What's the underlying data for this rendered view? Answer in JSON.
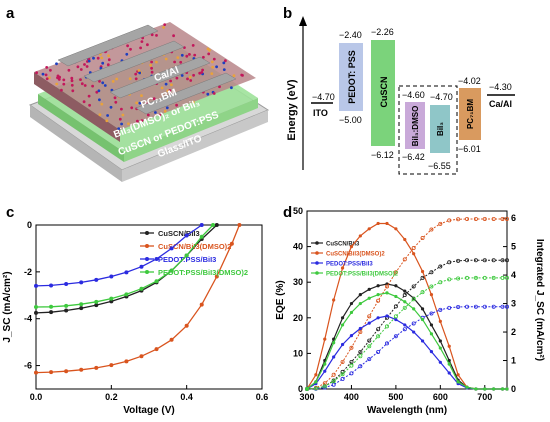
{
  "panels": {
    "a": {
      "label": "a",
      "layers": [
        "Ca/Al",
        "PC₇₁BM",
        "BiI₃(DMSO)₂ or BiI₃",
        "CuSCN or PEDOT:PSS",
        "Glass/ITO"
      ]
    },
    "b": {
      "label": "b",
      "ylabel": "Energy (eV)",
      "levels": [
        {
          "name": "ITO",
          "value": "−4.70"
        },
        {
          "name": "PEDOT: PSS",
          "top": "−2.40",
          "bottom": "−5.00",
          "color": "#b9c7e8"
        },
        {
          "name": "CuSCN",
          "top": "−2.26",
          "bottom": "−6.12",
          "color": "#7bd37b"
        },
        {
          "name": "BiI₃:DMSO",
          "top": "−4.60",
          "bottom": "−6.42",
          "color": "#c9a9d9"
        },
        {
          "name": "BiI₃",
          "top": "−4.70",
          "bottom": "−6.55",
          "color": "#8fc6c8"
        },
        {
          "name": "PC₇₁BM",
          "top": "−4.02",
          "bottom": "−6.01",
          "color": "#d99a5f"
        },
        {
          "name": "Ca/Al",
          "value": "−4.30"
        }
      ]
    },
    "c": {
      "label": "c"
    },
    "d": {
      "label": "d"
    }
  },
  "chart_data": [
    {
      "panel": "c",
      "type": "line",
      "xlabel": "Voltage (V)",
      "ylabel": "J_SC (mA/cm²)",
      "xlim": [
        0.0,
        0.6
      ],
      "ylim": [
        -7,
        0
      ],
      "xticks": [
        "0.0",
        "0.2",
        "0.4",
        "0.6"
      ],
      "yticks": [
        "-6",
        "-4",
        "-2",
        "0"
      ],
      "legend_position": "top-right",
      "series": [
        {
          "name": "CuSCN/BiI3",
          "color": "#222222",
          "x": [
            0,
            0.04,
            0.08,
            0.12,
            0.16,
            0.2,
            0.24,
            0.28,
            0.32,
            0.36,
            0.4,
            0.44,
            0.48
          ],
          "y": [
            -3.75,
            -3.72,
            -3.65,
            -3.55,
            -3.42,
            -3.26,
            -3.05,
            -2.8,
            -2.45,
            -1.95,
            -1.3,
            -0.6,
            0
          ]
        },
        {
          "name": "CuSCN/BiI3(DMSO)2",
          "color": "#d9541e",
          "x": [
            0,
            0.04,
            0.08,
            0.12,
            0.16,
            0.2,
            0.24,
            0.28,
            0.32,
            0.36,
            0.4,
            0.44,
            0.48,
            0.52,
            0.54
          ],
          "y": [
            -6.3,
            -6.28,
            -6.24,
            -6.18,
            -6.1,
            -5.98,
            -5.82,
            -5.6,
            -5.3,
            -4.9,
            -4.3,
            -3.4,
            -2.2,
            -0.8,
            0
          ]
        },
        {
          "name": "PEDOT:PSS/BiI3",
          "color": "#2b2be0",
          "x": [
            0,
            0.04,
            0.08,
            0.12,
            0.16,
            0.2,
            0.24,
            0.28,
            0.32,
            0.36,
            0.4,
            0.44
          ],
          "y": [
            -2.6,
            -2.58,
            -2.52,
            -2.45,
            -2.34,
            -2.2,
            -2.02,
            -1.78,
            -1.45,
            -1.0,
            -0.45,
            0
          ]
        },
        {
          "name": "PEDOT:PSS/BiI3(DMSO)2",
          "color": "#3ec93e",
          "x": [
            0,
            0.04,
            0.08,
            0.12,
            0.16,
            0.2,
            0.24,
            0.28,
            0.32,
            0.36,
            0.4,
            0.44,
            0.47
          ],
          "y": [
            -3.5,
            -3.49,
            -3.45,
            -3.38,
            -3.28,
            -3.14,
            -2.96,
            -2.72,
            -2.4,
            -1.95,
            -1.3,
            -0.5,
            0
          ]
        }
      ]
    },
    {
      "panel": "d",
      "type": "line",
      "xlabel": "Wavelength (nm)",
      "ylabel": "EQE (%)",
      "y2label": "Integrated J_SC (mA/cm²)",
      "xlim": [
        300,
        750
      ],
      "ylim": [
        0,
        50
      ],
      "y2lim": [
        0,
        6.25
      ],
      "xticks": [
        "300",
        "400",
        "500",
        "600",
        "700"
      ],
      "yticks": [
        "0",
        "10",
        "20",
        "30",
        "40",
        "50"
      ],
      "y2ticks": [
        "0",
        "1",
        "2",
        "3",
        "4",
        "5",
        "6"
      ],
      "legend_position": "top-left",
      "x": [
        300,
        320,
        340,
        360,
        380,
        400,
        420,
        440,
        460,
        480,
        500,
        520,
        540,
        560,
        580,
        600,
        620,
        640,
        660,
        680,
        700,
        720,
        740,
        750
      ],
      "series": [
        {
          "name": "CuSCN/BiI3",
          "color": "#222222",
          "eqe": [
            0,
            2,
            8,
            14,
            20,
            24,
            26.5,
            28,
            29,
            29.5,
            29,
            27.5,
            25.5,
            22.5,
            18,
            13.5,
            8,
            2.5,
            0.5,
            0,
            0,
            0,
            0,
            0
          ],
          "jsc": [
            0,
            0.02,
            0.1,
            0.3,
            0.6,
            0.95,
            1.3,
            1.7,
            2.1,
            2.5,
            2.9,
            3.3,
            3.6,
            3.9,
            4.1,
            4.3,
            4.45,
            4.5,
            4.52,
            4.52,
            4.52,
            4.52,
            4.52,
            4.52
          ]
        },
        {
          "name": "CuSCN/BiI3(DMSO)2",
          "color": "#d9541e",
          "eqe": [
            0,
            4,
            14,
            25,
            34,
            40,
            43,
            45,
            46.5,
            46.5,
            45,
            42,
            38,
            33,
            26.5,
            19,
            12,
            4,
            0.5,
            0,
            0,
            0,
            0,
            0
          ],
          "jsc": [
            0,
            0.04,
            0.2,
            0.5,
            0.95,
            1.45,
            2.0,
            2.55,
            3.1,
            3.6,
            4.1,
            4.55,
            4.95,
            5.3,
            5.6,
            5.8,
            5.92,
            5.96,
            5.97,
            5.97,
            5.97,
            5.97,
            5.97,
            5.97
          ]
        },
        {
          "name": "PEDOT:PSS/BiI3",
          "color": "#2b2be0",
          "eqe": [
            0,
            1.5,
            5,
            9,
            12.5,
            15,
            17,
            18.5,
            20,
            20.5,
            19.5,
            18,
            16,
            13.5,
            10.5,
            7.5,
            4.5,
            1.5,
            0.3,
            0,
            0,
            0,
            0,
            0
          ],
          "jsc": [
            0,
            0.01,
            0.05,
            0.15,
            0.35,
            0.55,
            0.8,
            1.05,
            1.3,
            1.6,
            1.85,
            2.1,
            2.3,
            2.5,
            2.65,
            2.78,
            2.85,
            2.88,
            2.89,
            2.89,
            2.89,
            2.89,
            2.89,
            2.89
          ]
        },
        {
          "name": "PEDOT:PSS/BiI3(DMSO)2",
          "color": "#3ec93e",
          "eqe": [
            0,
            2,
            7,
            13,
            18,
            21.5,
            24,
            25.5,
            26.5,
            27,
            26,
            24.5,
            22.5,
            19.5,
            15.5,
            11.5,
            7,
            2,
            0.5,
            0,
            0,
            0,
            0,
            0
          ],
          "jsc": [
            0,
            0.02,
            0.09,
            0.27,
            0.52,
            0.82,
            1.15,
            1.5,
            1.85,
            2.2,
            2.55,
            2.85,
            3.15,
            3.4,
            3.6,
            3.75,
            3.85,
            3.88,
            3.9,
            3.9,
            3.9,
            3.9,
            3.9,
            3.9
          ]
        }
      ]
    }
  ]
}
